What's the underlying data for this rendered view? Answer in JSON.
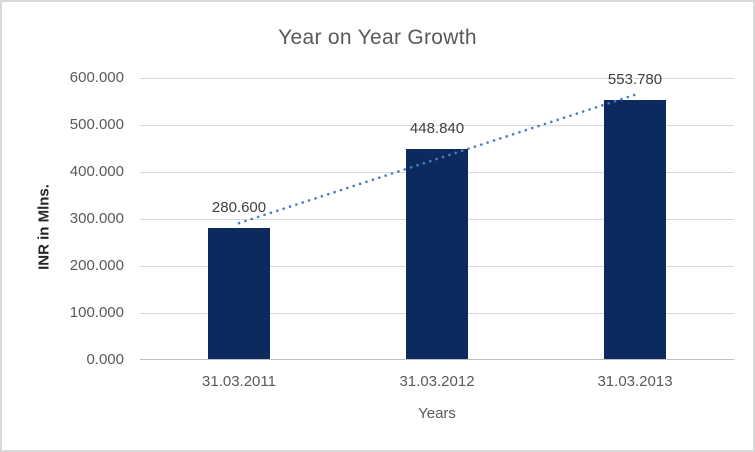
{
  "chart_data": {
    "type": "bar",
    "title": "Year on Year Growth",
    "xlabel": "Years",
    "ylabel": "INR in Mlns.",
    "categories": [
      "31.03.2011",
      "31.03.2012",
      "31.03.2013"
    ],
    "values": [
      280.6,
      448.84,
      553.78
    ],
    "data_labels": [
      "280.600",
      "448.840",
      "553.780"
    ],
    "y_tick_labels": [
      "0.000",
      "100.000",
      "200.000",
      "300.000",
      "400.000",
      "500.000",
      "600.000"
    ],
    "ylim": [
      0,
      600
    ],
    "grid": true,
    "legend": "none",
    "trendline": {
      "type": "linear",
      "style": "dotted"
    },
    "colors": {
      "bar": "#0c2a5e",
      "trendline": "#4a7dc6",
      "gridline": "#d9d9d9",
      "axis_line": "#bfbfbf",
      "title": "#595959",
      "tick": "#595959",
      "data_label": "#404040",
      "y_axis_title": "#262626",
      "border": "#d9d9d9",
      "background": "#ffffff"
    }
  }
}
